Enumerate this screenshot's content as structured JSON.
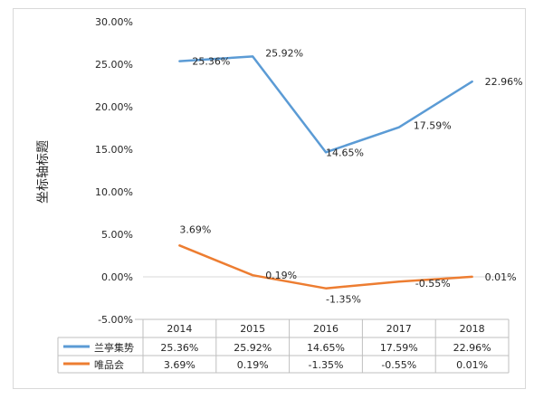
{
  "chart_data": {
    "type": "line",
    "title": "",
    "xlabel": "",
    "ylabel": "坐标轴标题",
    "categories": [
      "2014",
      "2015",
      "2016",
      "2017",
      "2018"
    ],
    "ylim": [
      -0.05,
      0.3
    ],
    "ytick_step": 0.05,
    "y_tick_labels": [
      "30.00%",
      "25.00%",
      "20.00%",
      "15.00%",
      "10.00%",
      "5.00%",
      "0.00%",
      "-5.00%"
    ],
    "series": [
      {
        "name": "兰亭集势",
        "color": "#5B9BD5",
        "values": [
          0.2536,
          0.2592,
          0.1465,
          0.1759,
          0.2296
        ],
        "labels": [
          "25.36%",
          "25.92%",
          "14.65%",
          "17.59%",
          "22.96%"
        ]
      },
      {
        "name": "唯品会",
        "color": "#ED7D31",
        "values": [
          0.0369,
          0.0019,
          -0.0135,
          -0.0055,
          0.0001
        ],
        "labels": [
          "3.69%",
          "0.19%",
          "-1.35%",
          "-0.55%",
          "0.01%"
        ]
      }
    ],
    "grid": false,
    "legend": "data-table",
    "data_table": true
  }
}
